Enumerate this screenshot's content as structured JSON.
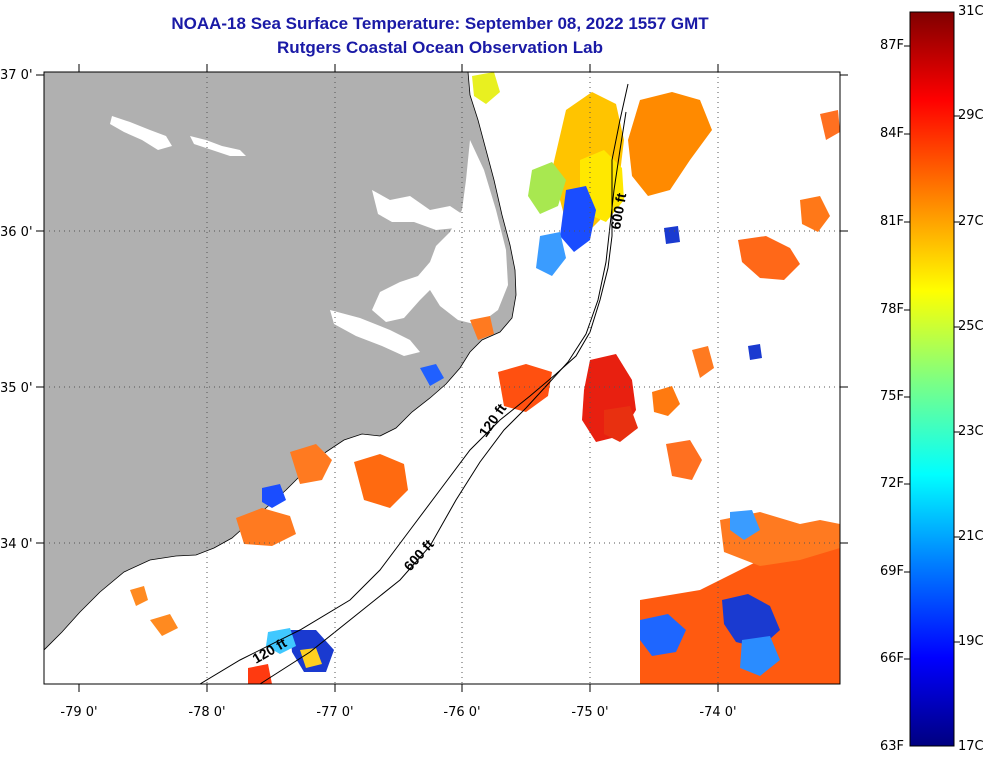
{
  "title_line1": "NOAA-18 Sea Surface Temperature:  September 08, 2022 1557 GMT",
  "title_line2": "Rutgers Coastal Ocean Observation Lab",
  "lat_labels": [
    "37 0'",
    "36 0'",
    "35 0'",
    "34 0'"
  ],
  "lon_labels": [
    "-79 0'",
    "-78 0'",
    "-77 0'",
    "-76 0'",
    "-75 0'",
    "-74 0'"
  ],
  "contour_labels": [
    "600 ft",
    "120 ft",
    "600 ft",
    "120 ft"
  ],
  "colorbar": {
    "fahrenheit": [
      "87F",
      "84F",
      "81F",
      "78F",
      "75F",
      "72F",
      "69F",
      "66F",
      "63F"
    ],
    "celsius": [
      "31C",
      "29C",
      "27C",
      "25C",
      "23C",
      "21C",
      "19C",
      "17C"
    ]
  },
  "colors": {
    "land": "#b0b0b0",
    "title": "#1a1aa6",
    "sst_scale": [
      "#000080",
      "#0000ff",
      "#0080ff",
      "#00ffff",
      "#80ff80",
      "#ffff00",
      "#ff8000",
      "#ff0000",
      "#800000"
    ]
  }
}
